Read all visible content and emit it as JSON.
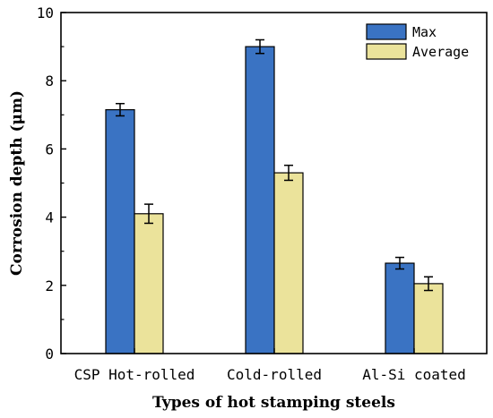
{
  "chart_data": {
    "type": "bar",
    "title": "",
    "xlabel": "Types of hot stamping steels",
    "ylabel": "Corrosion depth (μm)",
    "categories": [
      "CSP Hot-rolled",
      "Cold-rolled",
      "Al-Si coated"
    ],
    "series": [
      {
        "name": "Max",
        "color": "#3a73c3",
        "values": [
          7.15,
          9.0,
          2.65
        ],
        "errors": [
          0.18,
          0.2,
          0.17
        ]
      },
      {
        "name": "Average",
        "color": "#ebe39b",
        "values": [
          4.1,
          5.3,
          2.05
        ],
        "errors": [
          0.28,
          0.22,
          0.2
        ]
      }
    ],
    "ylim": [
      0,
      10
    ],
    "yticks": [
      0,
      2,
      4,
      6,
      8,
      10
    ],
    "legend_position": "top-right",
    "grid": false
  }
}
